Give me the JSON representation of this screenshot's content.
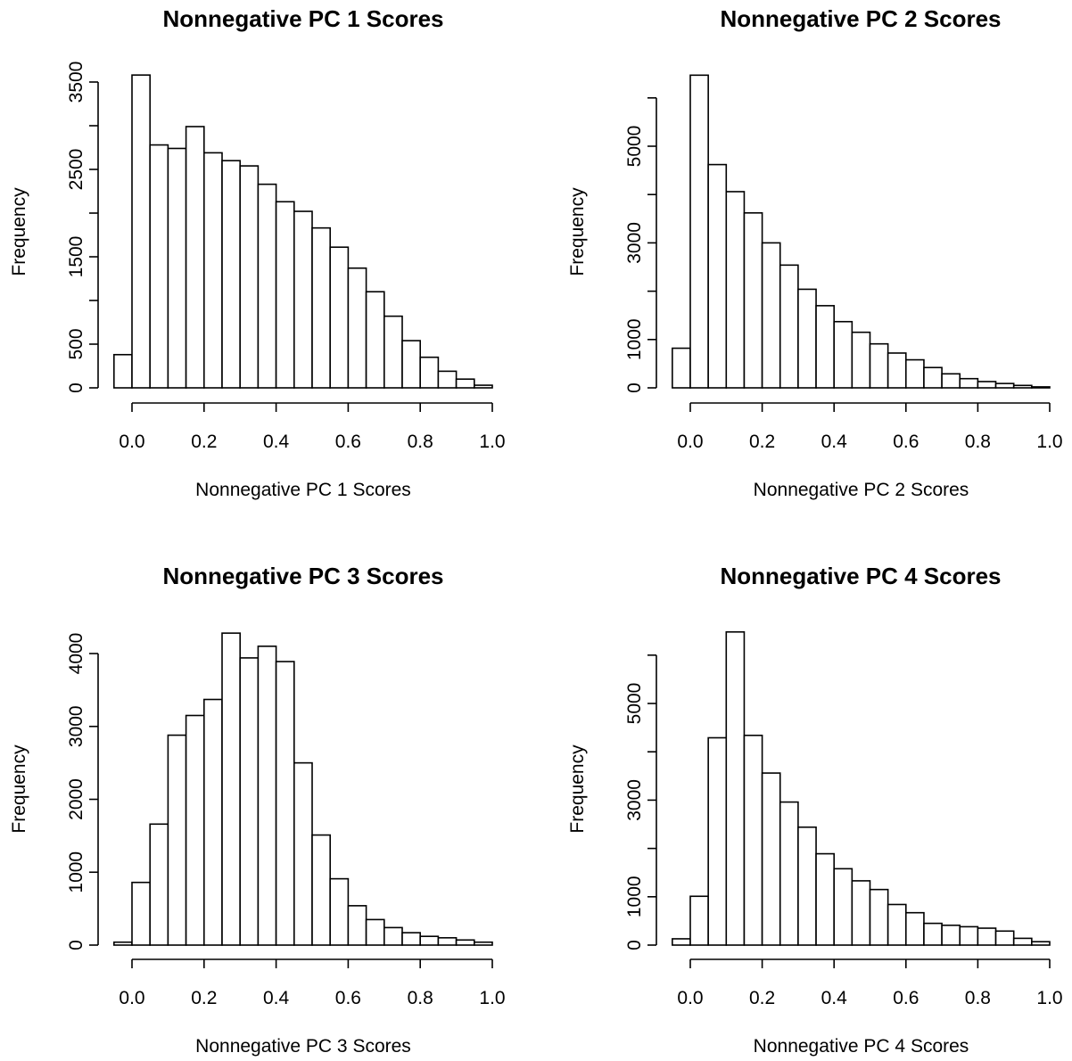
{
  "chart_data": [
    {
      "type": "bar",
      "title": "Nonnegative PC 1 Scores",
      "xlabel": "Nonnegative PC 1 Scores",
      "ylabel": "Frequency",
      "xlim": [
        -0.05,
        1.0
      ],
      "ylim": [
        0,
        3500
      ],
      "xticks": [
        "0.0",
        "0.2",
        "0.4",
        "0.6",
        "0.8",
        "1.0"
      ],
      "yticks": [
        "0",
        "500",
        "1500",
        "2500",
        "3500"
      ],
      "bin_edges": [
        -0.05,
        0.0,
        0.05,
        0.1,
        0.15,
        0.2,
        0.25,
        0.3,
        0.35,
        0.4,
        0.45,
        0.5,
        0.55,
        0.6,
        0.65,
        0.7,
        0.75,
        0.8,
        0.85,
        0.9,
        0.95,
        1.0
      ],
      "values": [
        380,
        3580,
        2780,
        2740,
        2990,
        2690,
        2600,
        2540,
        2330,
        2130,
        2020,
        1830,
        1610,
        1370,
        1100,
        820,
        540,
        350,
        190,
        100,
        30
      ]
    },
    {
      "type": "bar",
      "title": "Nonnegative PC 2 Scores",
      "xlabel": "Nonnegative PC 2 Scores",
      "ylabel": "Frequency",
      "xlim": [
        -0.05,
        1.0
      ],
      "ylim": [
        0,
        6000
      ],
      "xticks": [
        "0.0",
        "0.2",
        "0.4",
        "0.6",
        "0.8",
        "1.0"
      ],
      "yticks": [
        "0",
        "1000",
        "3000",
        "5000"
      ],
      "bin_edges": [
        -0.05,
        0.0,
        0.05,
        0.1,
        0.15,
        0.2,
        0.25,
        0.3,
        0.35,
        0.4,
        0.45,
        0.5,
        0.55,
        0.6,
        0.65,
        0.7,
        0.75,
        0.8,
        0.85,
        0.9,
        0.95,
        1.0
      ],
      "values": [
        820,
        6470,
        4620,
        4060,
        3620,
        3000,
        2540,
        2040,
        1700,
        1370,
        1150,
        910,
        720,
        580,
        420,
        290,
        190,
        130,
        90,
        50,
        20
      ]
    },
    {
      "type": "bar",
      "title": "Nonnegative PC 3 Scores",
      "xlabel": "Nonnegative PC 3 Scores",
      "ylabel": "Frequency",
      "xlim": [
        -0.05,
        1.0
      ],
      "ylim": [
        0,
        4000
      ],
      "xticks": [
        "0.0",
        "0.2",
        "0.4",
        "0.6",
        "0.8",
        "1.0"
      ],
      "yticks": [
        "0",
        "1000",
        "2000",
        "3000",
        "4000"
      ],
      "bin_edges": [
        -0.05,
        0.0,
        0.05,
        0.1,
        0.15,
        0.2,
        0.25,
        0.3,
        0.35,
        0.4,
        0.45,
        0.5,
        0.55,
        0.6,
        0.65,
        0.7,
        0.75,
        0.8,
        0.85,
        0.9,
        0.95,
        1.0
      ],
      "values": [
        40,
        860,
        1660,
        2880,
        3150,
        3370,
        4280,
        3940,
        4100,
        3890,
        2500,
        1510,
        910,
        540,
        350,
        240,
        170,
        120,
        100,
        70,
        40
      ]
    },
    {
      "type": "bar",
      "title": "Nonnegative PC 4 Scores",
      "xlabel": "Nonnegative PC 4 Scores",
      "ylabel": "Frequency",
      "xlim": [
        -0.05,
        1.0
      ],
      "ylim": [
        0,
        6000
      ],
      "xticks": [
        "0.0",
        "0.2",
        "0.4",
        "0.6",
        "0.8",
        "1.0"
      ],
      "yticks": [
        "0",
        "1000",
        "3000",
        "5000"
      ],
      "bin_edges": [
        -0.05,
        0.0,
        0.05,
        0.1,
        0.15,
        0.2,
        0.25,
        0.3,
        0.35,
        0.4,
        0.45,
        0.5,
        0.55,
        0.6,
        0.65,
        0.7,
        0.75,
        0.8,
        0.85,
        0.9,
        0.95,
        1.0
      ],
      "values": [
        130,
        1010,
        4290,
        6480,
        4340,
        3560,
        2960,
        2440,
        1890,
        1580,
        1330,
        1150,
        840,
        670,
        450,
        410,
        380,
        350,
        290,
        140,
        70
      ]
    }
  ]
}
